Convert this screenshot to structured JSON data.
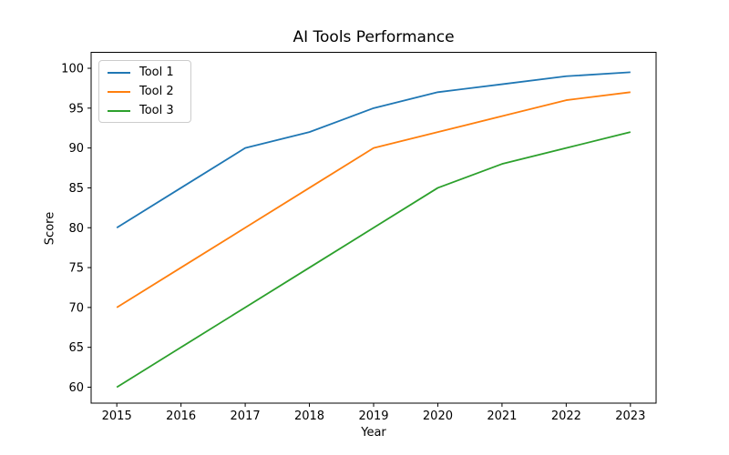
{
  "figure": {
    "background": "#ffffff",
    "text_color": "#000000",
    "axis_color": "#000000"
  },
  "chart_data": {
    "type": "line",
    "title": "AI Tools Performance",
    "xlabel": "Year",
    "ylabel": "Score",
    "x": [
      2015,
      2016,
      2017,
      2018,
      2019,
      2020,
      2021,
      2022,
      2023
    ],
    "series": [
      {
        "name": "Tool 1",
        "color": "#1f77b4",
        "values": [
          80,
          85,
          90,
          92,
          95,
          97,
          98,
          99,
          99.5
        ]
      },
      {
        "name": "Tool 2",
        "color": "#ff7f0e",
        "values": [
          70,
          75,
          80,
          85,
          90,
          92,
          94,
          96,
          97
        ]
      },
      {
        "name": "Tool 3",
        "color": "#2ca02c",
        "values": [
          60,
          65,
          70,
          75,
          80,
          85,
          88,
          90,
          92
        ]
      }
    ],
    "xticks": [
      2015,
      2016,
      2017,
      2018,
      2019,
      2020,
      2021,
      2022,
      2023
    ],
    "yticks": [
      60,
      65,
      70,
      75,
      80,
      85,
      90,
      95,
      100
    ],
    "xlim": [
      2014.6,
      2023.4
    ],
    "ylim": [
      58,
      102
    ],
    "grid": false,
    "legend": {
      "position": "upper-left"
    }
  }
}
